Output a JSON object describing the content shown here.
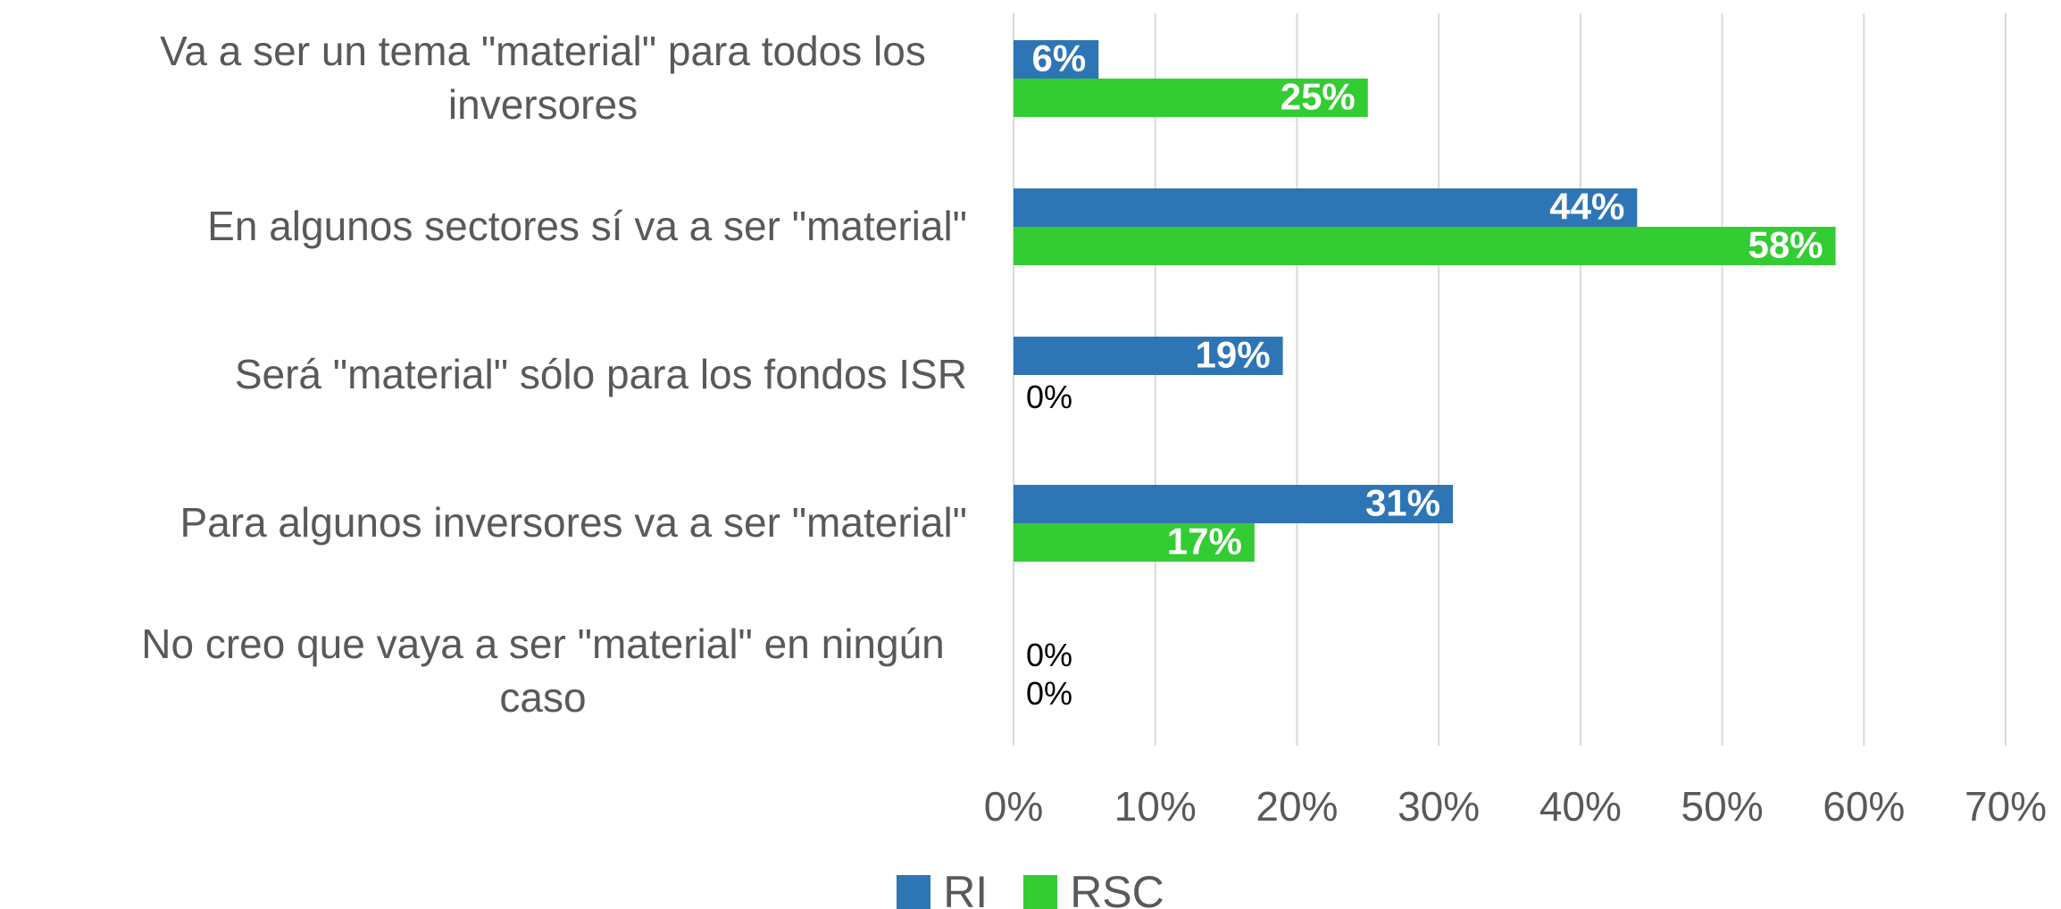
{
  "chart_data": {
    "type": "bar",
    "orientation": "horizontal",
    "categories": [
      "Va a ser un tema \"material\" para todos los inversores",
      "En algunos sectores sí va a ser \"material\"",
      "Será \"material\" sólo para los fondos ISR",
      "Para algunos inversores va a ser \"material\"",
      "No creo que vaya a ser \"material\" en ningún caso"
    ],
    "series": [
      {
        "name": "RI",
        "color": "#2e75b6",
        "values": [
          6,
          44,
          19,
          31,
          0
        ],
        "value_labels": [
          "6%",
          "44%",
          "19%",
          "31%",
          "0%"
        ]
      },
      {
        "name": "RSC",
        "color": "#33cc33",
        "values": [
          25,
          58,
          0,
          17,
          0
        ],
        "value_labels": [
          "25%",
          "58%",
          "0%",
          "17%",
          "0%"
        ]
      }
    ],
    "xlim": [
      0,
      70
    ],
    "xticks": [
      {
        "value": 0,
        "label": "0%"
      },
      {
        "value": 10,
        "label": "10%"
      },
      {
        "value": 20,
        "label": "20%"
      },
      {
        "value": 30,
        "label": "30%"
      },
      {
        "value": 40,
        "label": "40%"
      },
      {
        "value": 50,
        "label": "50%"
      },
      {
        "value": 60,
        "label": "60%"
      },
      {
        "value": 70,
        "label": "70%"
      }
    ],
    "grid": true,
    "legend": "bottom"
  }
}
